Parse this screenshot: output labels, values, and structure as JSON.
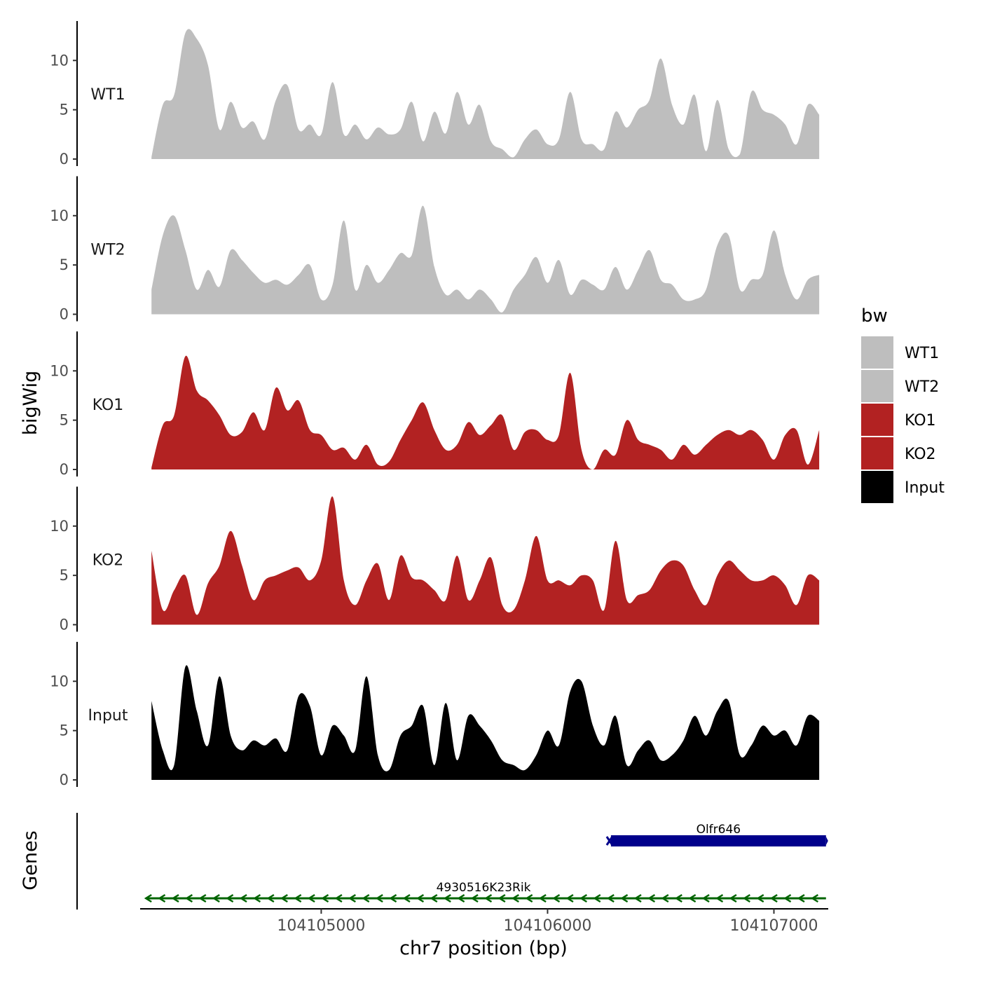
{
  "chart_data": {
    "type": "area",
    "title": "",
    "xlabel": "chr7 position (bp)",
    "ylabel": "bigWig",
    "genes_label": "Genes",
    "xlim": [
      104104200,
      104107240
    ],
    "xticks": [
      104105000,
      104106000,
      104107000
    ],
    "xtick_labels": [
      "104105000",
      "104106000",
      "104107000"
    ],
    "ylim": [
      0,
      14
    ],
    "yticks": [
      0,
      5,
      10
    ],
    "ytick_labels": [
      "0",
      "5",
      "10"
    ],
    "legend_title": "bw",
    "legend": [
      {
        "label": "WT1",
        "color": "#bebebe"
      },
      {
        "label": "WT2",
        "color": "#bebebe"
      },
      {
        "label": "KO1",
        "color": "#b22222"
      },
      {
        "label": "KO2",
        "color": "#b22222"
      },
      {
        "label": "Input",
        "color": "#000000"
      }
    ],
    "x": [
      104104250,
      104104300,
      104104350,
      104104400,
      104104450,
      104104500,
      104104550,
      104104600,
      104104650,
      104104700,
      104104750,
      104104800,
      104104850,
      104104900,
      104104950,
      104105000,
      104105050,
      104105100,
      104105150,
      104105200,
      104105250,
      104105300,
      104105350,
      104105400,
      104105450,
      104105500,
      104105550,
      104105600,
      104105650,
      104105700,
      104105750,
      104105800,
      104105850,
      104105900,
      104105950,
      104106000,
      104106050,
      104106100,
      104106150,
      104106200,
      104106250,
      104106300,
      104106350,
      104106400,
      104106450,
      104106500,
      104106550,
      104106600,
      104106650,
      104106700,
      104106750,
      104106800,
      104106850,
      104106900,
      104106950,
      104107000,
      104107050,
      104107100,
      104107150,
      104107200
    ],
    "series": [
      {
        "name": "WT1",
        "color": "#bebebe",
        "values": [
          0.2,
          5.5,
          6.5,
          12.8,
          12.2,
          9.5,
          3.0,
          5.8,
          3.2,
          3.8,
          2.0,
          6.0,
          7.5,
          3.0,
          3.5,
          2.5,
          7.8,
          2.5,
          3.5,
          2.0,
          3.2,
          2.5,
          3.0,
          5.8,
          1.8,
          4.8,
          2.6,
          6.8,
          3.5,
          5.5,
          1.8,
          1.0,
          0.2,
          2.0,
          3.0,
          1.5,
          2.0,
          6.8,
          2.0,
          1.5,
          1.0,
          4.8,
          3.2,
          5.0,
          6.0,
          10.2,
          5.5,
          3.5,
          6.5,
          0.8,
          6.0,
          1.0,
          0.5,
          6.8,
          5.0,
          4.5,
          3.5,
          1.5,
          5.5,
          4.5
        ]
      },
      {
        "name": "WT2",
        "color": "#bebebe",
        "values": [
          2.5,
          8.0,
          10.0,
          6.5,
          2.5,
          4.5,
          2.8,
          6.5,
          5.5,
          4.2,
          3.2,
          3.5,
          3.0,
          4.0,
          5.0,
          1.5,
          3.0,
          9.5,
          2.5,
          5.0,
          3.2,
          4.5,
          6.2,
          6.0,
          11.0,
          4.8,
          2.0,
          2.5,
          1.5,
          2.5,
          1.5,
          0.2,
          2.5,
          4.0,
          5.8,
          3.2,
          5.5,
          2.0,
          3.5,
          3.0,
          2.5,
          4.8,
          2.5,
          4.5,
          6.5,
          3.5,
          3.0,
          1.5,
          1.5,
          2.5,
          7.0,
          8.0,
          2.5,
          3.5,
          4.0,
          8.5,
          4.0,
          1.5,
          3.5,
          4.0
        ]
      },
      {
        "name": "KO1",
        "color": "#b22222",
        "values": [
          0.2,
          4.5,
          5.5,
          11.5,
          8.0,
          7.0,
          5.5,
          3.5,
          3.8,
          5.8,
          4.0,
          8.3,
          6.0,
          7.0,
          4.0,
          3.5,
          2.0,
          2.2,
          1.0,
          2.5,
          0.5,
          0.8,
          3.0,
          5.0,
          6.8,
          4.0,
          2.0,
          2.5,
          4.8,
          3.5,
          4.5,
          5.5,
          2.0,
          3.8,
          4.0,
          3.0,
          3.5,
          9.8,
          2.0,
          0.0,
          2.0,
          1.5,
          5.0,
          3.0,
          2.5,
          2.0,
          1.0,
          2.5,
          1.5,
          2.5,
          3.5,
          4.0,
          3.5,
          4.0,
          3.0,
          1.0,
          3.5,
          4.0,
          0.5,
          4.0
        ]
      },
      {
        "name": "KO2",
        "color": "#b22222",
        "values": [
          7.5,
          1.5,
          3.5,
          5.0,
          1.0,
          4.2,
          6.0,
          9.5,
          6.0,
          2.5,
          4.5,
          5.0,
          5.5,
          5.8,
          4.5,
          6.5,
          13.0,
          4.5,
          2.0,
          4.5,
          6.2,
          2.5,
          7.0,
          4.8,
          4.5,
          3.5,
          2.5,
          7.0,
          2.5,
          4.5,
          6.8,
          2.0,
          1.5,
          4.5,
          9.0,
          4.5,
          4.5,
          4.0,
          5.0,
          4.5,
          1.5,
          8.5,
          2.5,
          3.0,
          3.5,
          5.5,
          6.5,
          6.0,
          3.5,
          2.0,
          5.0,
          6.5,
          5.5,
          4.5,
          4.5,
          5.0,
          4.0,
          2.0,
          5.0,
          4.5
        ]
      },
      {
        "name": "Input",
        "color": "#000000",
        "values": [
          8.0,
          3.0,
          1.5,
          11.5,
          7.0,
          3.5,
          10.5,
          4.5,
          3.0,
          4.0,
          3.5,
          4.2,
          3.0,
          8.5,
          7.5,
          2.5,
          5.5,
          4.5,
          3.0,
          10.5,
          2.5,
          1.0,
          4.5,
          5.5,
          7.5,
          1.5,
          7.8,
          2.0,
          6.5,
          5.5,
          4.0,
          2.0,
          1.5,
          1.0,
          2.5,
          5.0,
          3.5,
          9.0,
          10.0,
          5.5,
          3.5,
          6.5,
          1.5,
          3.0,
          4.0,
          2.0,
          2.5,
          4.0,
          6.5,
          4.5,
          7.0,
          8.0,
          2.5,
          3.5,
          5.5,
          4.5,
          5.0,
          3.5,
          6.5,
          6.0
        ]
      }
    ],
    "genes": [
      {
        "name": "Olfr646",
        "start": 104106280,
        "end": 104107230,
        "strand": "+",
        "color": "#00008b"
      },
      {
        "name": "4930516K23Rik",
        "start": 104104250,
        "end": 104107230,
        "strand": "-",
        "color": "#006400"
      }
    ]
  }
}
